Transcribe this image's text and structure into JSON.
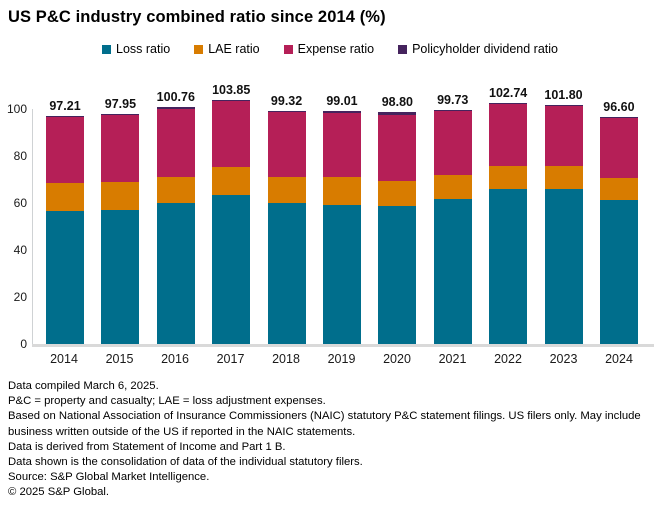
{
  "title": "US P&C industry combined ratio since 2014 (%)",
  "colors": {
    "loss": "#006e8c",
    "lae": "#d87c00",
    "expense": "#b51f57",
    "dividend": "#45235d",
    "axis_line": "#cfd2d4",
    "baseline": "#d9d9d9"
  },
  "legend": [
    {
      "key": "loss",
      "label": "Loss ratio"
    },
    {
      "key": "lae",
      "label": "LAE ratio"
    },
    {
      "key": "expense",
      "label": "Expense ratio"
    },
    {
      "key": "dividend",
      "label": "Policyholder dividend ratio"
    }
  ],
  "chart_data": {
    "type": "bar",
    "stacked": true,
    "title": "US P&C industry combined ratio since 2014 (%)",
    "xlabel": "",
    "ylabel": "",
    "ylim": [
      0,
      100
    ],
    "yticks": [
      0,
      20,
      40,
      60,
      80,
      100
    ],
    "grid": false,
    "legend_position": "top",
    "categories": [
      "2014",
      "2015",
      "2016",
      "2017",
      "2018",
      "2019",
      "2020",
      "2021",
      "2022",
      "2023",
      "2024"
    ],
    "series": [
      {
        "key": "loss",
        "name": "Loss ratio",
        "values": [
          56.8,
          57.2,
          60.0,
          63.4,
          60.1,
          59.0,
          58.7,
          61.8,
          65.8,
          66.1,
          61.3
        ]
      },
      {
        "key": "lae",
        "name": "LAE ratio",
        "values": [
          11.8,
          11.7,
          11.2,
          12.0,
          11.0,
          12.2,
          10.7,
          10.1,
          9.8,
          9.5,
          9.2
        ]
      },
      {
        "key": "expense",
        "name": "Expense ratio",
        "values": [
          28.0,
          28.4,
          29.0,
          27.9,
          27.6,
          27.2,
          27.9,
          27.2,
          26.6,
          25.7,
          25.6
        ]
      },
      {
        "key": "dividend",
        "name": "Policyholder dividend ratio",
        "values": [
          0.61,
          0.65,
          0.56,
          0.55,
          0.62,
          0.61,
          1.5,
          0.63,
          0.54,
          0.5,
          0.5
        ]
      }
    ],
    "totals_labels": [
      "97.21",
      "97.95",
      "100.76",
      "103.85",
      "99.32",
      "99.01",
      "98.80",
      "99.73",
      "102.74",
      "101.80",
      "96.60"
    ]
  },
  "footnotes": [
    "Data compiled March 6, 2025.",
    "P&C = property and casualty; LAE = loss adjustment expenses.",
    "Based on National Association of Insurance Commissioners (NAIC) statutory P&C statement filings. US filers only. May include business written outside of the US if reported in the NAIC statements.",
    "Data is derived from Statement of Income and Part 1 B.",
    "Data shown is the consolidation of data of the individual statutory filers.",
    "Source: S&P Global Market Intelligence.",
    "© 2025 S&P Global."
  ]
}
